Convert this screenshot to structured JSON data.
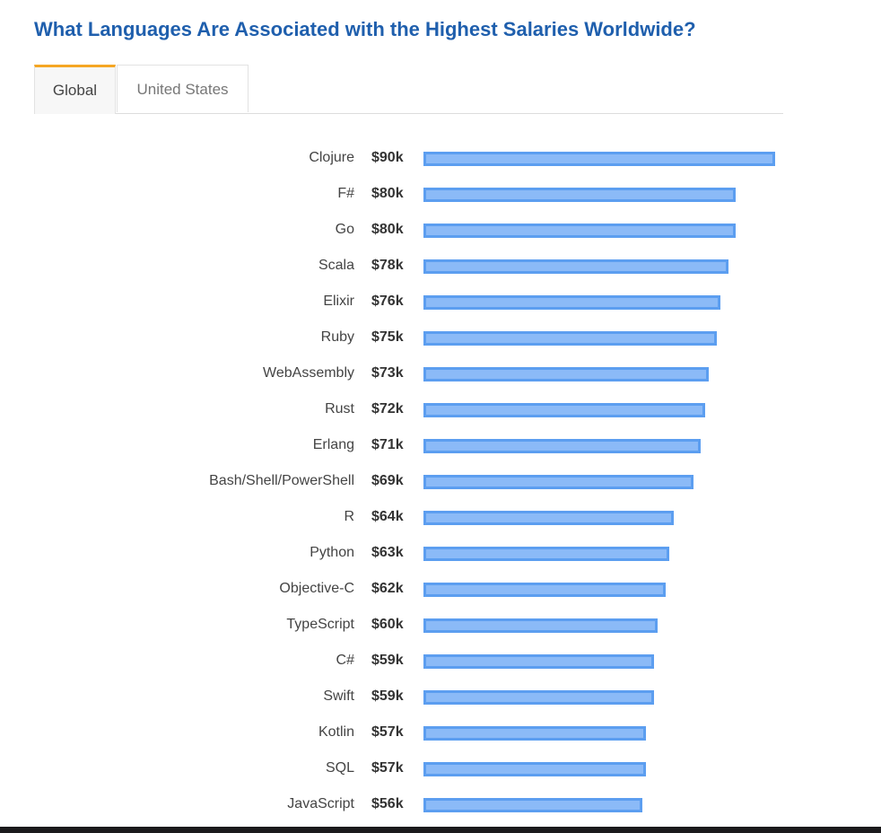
{
  "title": "What Languages Are Associated with the Highest Salaries Worldwide?",
  "tabs": [
    {
      "label": "Global",
      "active": true
    },
    {
      "label": "United States",
      "active": false
    }
  ],
  "colors": {
    "title": "#1f5fad",
    "bar_fill": "#8bbaf7",
    "bar_border": "#5c9ef0",
    "tab_accent": "#f5a623"
  },
  "chart_data": {
    "type": "bar",
    "orientation": "horizontal",
    "categories": [
      "Clojure",
      "F#",
      "Go",
      "Scala",
      "Elixir",
      "Ruby",
      "WebAssembly",
      "Rust",
      "Erlang",
      "Bash/Shell/PowerShell",
      "R",
      "Python",
      "Objective-C",
      "TypeScript",
      "C#",
      "Swift",
      "Kotlin",
      "SQL",
      "JavaScript"
    ],
    "values": [
      90,
      80,
      80,
      78,
      76,
      75,
      73,
      72,
      71,
      69,
      64,
      63,
      62,
      60,
      59,
      59,
      57,
      57,
      56
    ],
    "value_labels": [
      "$90k",
      "$80k",
      "$80k",
      "$78k",
      "$76k",
      "$75k",
      "$73k",
      "$72k",
      "$71k",
      "$69k",
      "$64k",
      "$63k",
      "$62k",
      "$60k",
      "$59k",
      "$59k",
      "$57k",
      "$57k",
      "$56k"
    ],
    "grid": false
  }
}
